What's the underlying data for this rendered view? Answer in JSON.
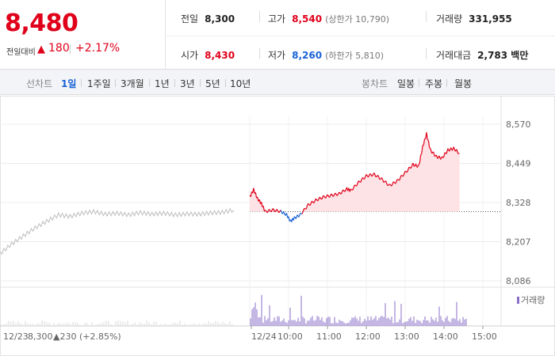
{
  "header": {
    "current_price": "8,480",
    "change_label": "전일대비",
    "change_arrow": "▲",
    "change_value": "180",
    "change_pct": "+2.17%",
    "stats": {
      "prev_close": {
        "label": "전일",
        "value": "8,300"
      },
      "high": {
        "label": "고가",
        "value": "8,540",
        "sub": "(상한가 10,790)"
      },
      "volume": {
        "label": "거래량",
        "value": "331,955"
      },
      "open": {
        "label": "시가",
        "value": "8,430"
      },
      "low": {
        "label": "저가",
        "value": "8,260",
        "sub": "(하한가 5,810)"
      },
      "amount": {
        "label": "거래대금",
        "value": "2,783 백만"
      }
    }
  },
  "tabs": {
    "line_label": "선차트",
    "line_tabs": [
      "1일",
      "1주일",
      "3개월",
      "1년",
      "3년",
      "5년",
      "10년"
    ],
    "active_line_tab": "1일",
    "candle_label": "봉차트",
    "candle_tabs": [
      "일봉",
      "주봉",
      "월봉"
    ]
  },
  "colors": {
    "up": "#e0001a",
    "down": "#1a62d6",
    "prev_day_line": "#bdbdbd",
    "area_fill": "#fde3e5",
    "volume_bar": "#8b6fc9"
  },
  "chart_data": {
    "type": "line",
    "y_ticks": [
      "8,570",
      "8,449",
      "8,328",
      "8,207",
      "8,086"
    ],
    "ylim": [
      8086,
      8570
    ],
    "baseline": 8300,
    "x_ticks": [
      "12/24",
      "10:00",
      "11:00",
      "12:00",
      "13:00",
      "14:00",
      "15:00"
    ],
    "prev_day_label": "12/23",
    "prev_day_close": "8,300",
    "prev_day_change": "▲230 (+2.85%)",
    "volume_legend": "거래량",
    "prev_day_series": [
      [
        0,
        8170
      ],
      [
        0.05,
        8200
      ],
      [
        0.1,
        8225
      ],
      [
        0.15,
        8250
      ],
      [
        0.2,
        8270
      ],
      [
        0.25,
        8290
      ],
      [
        0.3,
        8285
      ],
      [
        0.35,
        8295
      ],
      [
        0.4,
        8300
      ],
      [
        0.45,
        8292
      ],
      [
        0.5,
        8295
      ],
      [
        0.55,
        8290
      ],
      [
        0.6,
        8297
      ],
      [
        0.65,
        8292
      ],
      [
        0.7,
        8295
      ],
      [
        0.75,
        8290
      ],
      [
        0.8,
        8293
      ],
      [
        0.85,
        8292
      ],
      [
        0.9,
        8296
      ],
      [
        0.95,
        8298
      ],
      [
        1.0,
        8305
      ]
    ],
    "today_series": [
      [
        9.0,
        8345
      ],
      [
        9.1,
        8368
      ],
      [
        9.2,
        8340
      ],
      [
        9.3,
        8325
      ],
      [
        9.4,
        8300
      ],
      [
        9.6,
        8305
      ],
      [
        9.8,
        8300
      ],
      [
        9.95,
        8290
      ],
      [
        10.05,
        8270
      ],
      [
        10.15,
        8280
      ],
      [
        10.3,
        8290
      ],
      [
        10.5,
        8320
      ],
      [
        10.7,
        8335
      ],
      [
        10.9,
        8345
      ],
      [
        11.1,
        8350
      ],
      [
        11.3,
        8355
      ],
      [
        11.5,
        8370
      ],
      [
        11.6,
        8365
      ],
      [
        11.8,
        8390
      ],
      [
        12.0,
        8410
      ],
      [
        12.2,
        8415
      ],
      [
        12.4,
        8400
      ],
      [
        12.6,
        8380
      ],
      [
        12.8,
        8395
      ],
      [
        13.0,
        8420
      ],
      [
        13.2,
        8445
      ],
      [
        13.35,
        8440
      ],
      [
        13.45,
        8500
      ],
      [
        13.55,
        8540
      ],
      [
        13.65,
        8490
      ],
      [
        13.8,
        8470
      ],
      [
        13.95,
        8465
      ],
      [
        14.1,
        8490
      ],
      [
        14.25,
        8495
      ],
      [
        14.4,
        8480
      ]
    ],
    "series": [
      {
        "values_ref": "today_series"
      },
      {
        "values_ref": "prev_day_series"
      }
    ],
    "grid": "on"
  }
}
